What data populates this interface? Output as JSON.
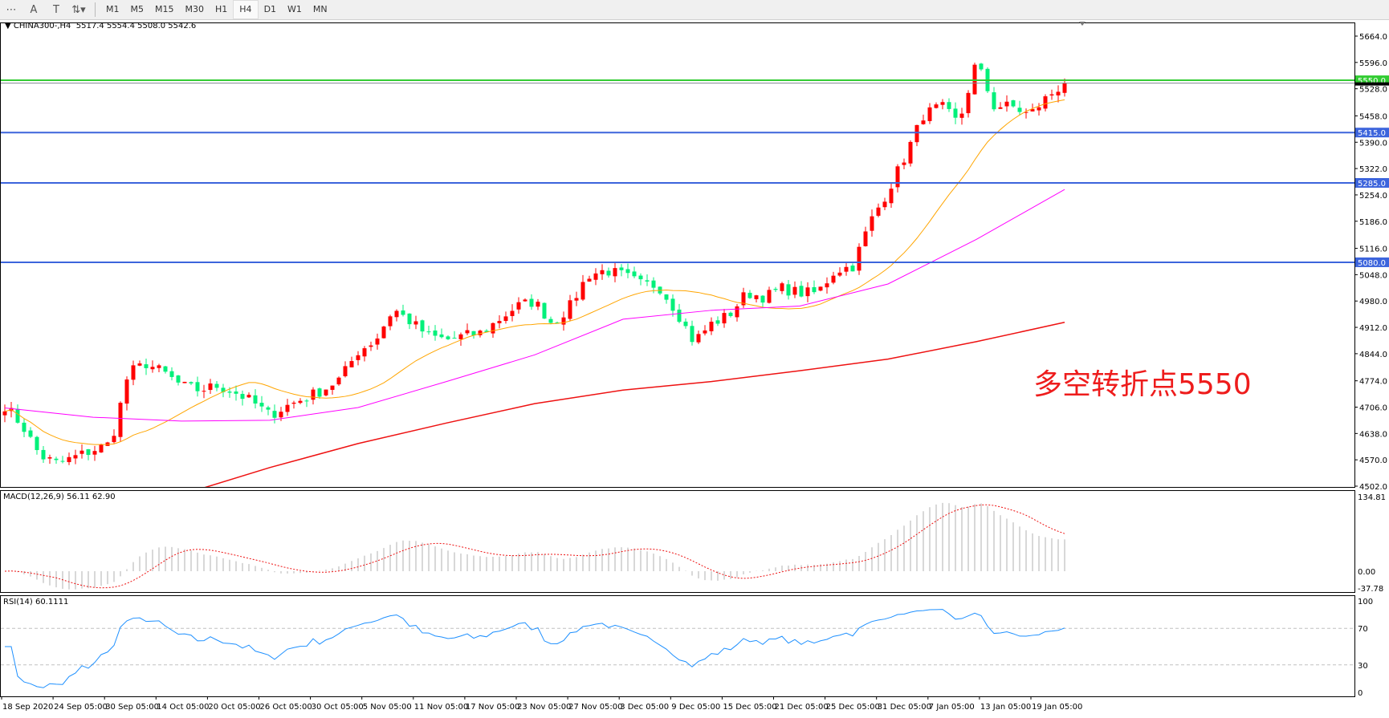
{
  "toolbar": {
    "icons": [
      "period-separator-icon",
      "text-icon",
      "text-label-icon",
      "arrows-icon"
    ],
    "timeframes": [
      "M1",
      "M5",
      "M15",
      "M30",
      "H1",
      "H4",
      "D1",
      "W1",
      "MN"
    ],
    "active_timeframe": "H4"
  },
  "header": {
    "symbol": "CHINA300-,H4",
    "ohlc": "5517.4 5554.4 5508.0 5542.6"
  },
  "annotation": {
    "text": "多空转折点5550",
    "color": "#ee1c1c"
  },
  "colors": {
    "bull": "#ff0000",
    "bear": "#00f07a",
    "ma_fast": "#ffa500",
    "ma_mid": "#ff00ff",
    "ma_slow": "#ee1111",
    "resistance": "#33cc33",
    "support": "#3c64dc",
    "rsi": "#1e90ff",
    "macd_signal": "#ee1111",
    "macd_hist": "#b0b0b0"
  },
  "chart_data": {
    "type": "candlestick",
    "symbol": "CHINA300-",
    "timeframe": "H4",
    "y_ticks": [
      "5664.0",
      "5596.0",
      "5528.0",
      "5458.0",
      "5390.0",
      "5322.0",
      "5254.0",
      "5186.0",
      "5116.0",
      "5048.0",
      "4980.0",
      "4912.0",
      "4844.0",
      "4774.0",
      "4706.0",
      "4638.0",
      "4570.0",
      "4502.0"
    ],
    "ylim": [
      4502,
      5664
    ],
    "x_ticks": [
      "18 Sep 2020",
      "24 Sep 05:00",
      "30 Sep 05:00",
      "14 Oct 05:00",
      "20 Oct 05:00",
      "26 Oct 05:00",
      "30 Oct 05:00",
      "5 Nov 05:00",
      "11 Nov 05:00",
      "17 Nov 05:00",
      "23 Nov 05:00",
      "27 Nov 05:00",
      "3 Dec 05:00",
      "9 Dec 05:00",
      "15 Dec 05:00",
      "21 Dec 05:00",
      "25 Dec 05:00",
      "31 Dec 05:00",
      "7 Jan 05:00",
      "13 Jan 05:00",
      "19 Jan 05:00"
    ],
    "last_bar": {
      "open": 5517.4,
      "high": 5554.4,
      "low": 5508.0,
      "close": 5542.6
    },
    "closes": [
      4710,
      4658,
      4580,
      4560,
      4578,
      4595,
      4612,
      4795,
      4818,
      4795,
      4761,
      4750,
      4761,
      4745,
      4720,
      4685,
      4710,
      4730,
      4750,
      4780,
      4850,
      4880,
      4960,
      4925,
      4890,
      4880,
      4890,
      4898,
      4933,
      4967,
      4979,
      4921,
      4967,
      5047,
      5059,
      5047,
      5024,
      5020,
      4956,
      4875,
      4921,
      4944,
      5001,
      4990,
      5013,
      5001,
      5001,
      5059,
      5070,
      5185,
      5265,
      5357,
      5460,
      5483,
      5437,
      5598,
      5483,
      5483,
      5460,
      5506,
      5542.6
    ],
    "ma_mid": [
      4704,
      4680,
      4670,
      4672,
      4705,
      4772,
      4841,
      4933,
      4956,
      4967,
      5024,
      5139,
      5268
    ],
    "ma_slow": [
      4330,
      4400,
      4480,
      4550,
      4612,
      4665,
      4715,
      4750,
      4772,
      4800,
      4830,
      4875,
      4925
    ],
    "horizontal_lines": [
      {
        "price": "5550.0",
        "color": "#33cc33"
      },
      {
        "price": "5415.0",
        "color": "#3c64dc"
      },
      {
        "price": "5285.0",
        "color": "#3c64dc"
      },
      {
        "price": "5080.0",
        "color": "#3c64dc"
      }
    ],
    "current_price": 5542.6,
    "macd": {
      "label": "MACD(12,26,9) 56.11 62.90",
      "ticks": [
        "134.81",
        "0.00",
        "-37.78"
      ],
      "range": [
        -37.78,
        134.81
      ]
    },
    "rsi": {
      "label": "RSI(14) 60.1111",
      "ticks": [
        "100",
        "70",
        "30",
        "0"
      ],
      "levels": [
        70,
        30
      ]
    }
  }
}
